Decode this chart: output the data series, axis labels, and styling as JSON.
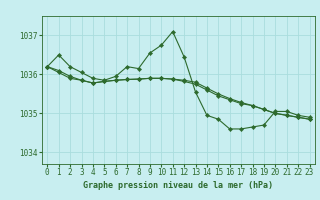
{
  "title": "Graphe pression niveau de la mer (hPa)",
  "bg_color": "#c8eef0",
  "grid_color": "#aadddd",
  "line_color": "#2d6a2d",
  "marker_color": "#2d6a2d",
  "xlim": [
    -0.5,
    23.5
  ],
  "ylim": [
    1033.7,
    1037.5
  ],
  "yticks": [
    1034,
    1035,
    1036,
    1037
  ],
  "xticks": [
    0,
    1,
    2,
    3,
    4,
    5,
    6,
    7,
    8,
    9,
    10,
    11,
    12,
    13,
    14,
    15,
    16,
    17,
    18,
    19,
    20,
    21,
    22,
    23
  ],
  "series1": [
    1036.2,
    1036.5,
    1036.2,
    1036.05,
    1035.9,
    1035.85,
    1035.95,
    1036.2,
    1036.15,
    1036.55,
    1036.75,
    1037.1,
    1036.45,
    1035.55,
    1034.95,
    1034.85,
    1034.6,
    1034.6,
    1034.65,
    1034.7,
    1035.05,
    1035.05,
    1034.95,
    1034.9
  ],
  "series2": [
    1036.2,
    1036.05,
    1035.9,
    1035.85,
    1035.78,
    1035.82,
    1035.85,
    1035.87,
    1035.88,
    1035.9,
    1035.9,
    1035.88,
    1035.85,
    1035.8,
    1035.65,
    1035.5,
    1035.38,
    1035.28,
    1035.2,
    1035.1,
    1035.0,
    1034.95,
    1034.9,
    1034.85
  ],
  "series3": [
    1036.2,
    1036.1,
    1035.95,
    1035.85,
    1035.78,
    1035.82,
    1035.85,
    1035.87,
    1035.88,
    1035.9,
    1035.9,
    1035.88,
    1035.82,
    1035.75,
    1035.6,
    1035.45,
    1035.35,
    1035.25,
    1035.2,
    1035.1,
    1035.0,
    1034.95,
    1034.9,
    1034.85
  ]
}
